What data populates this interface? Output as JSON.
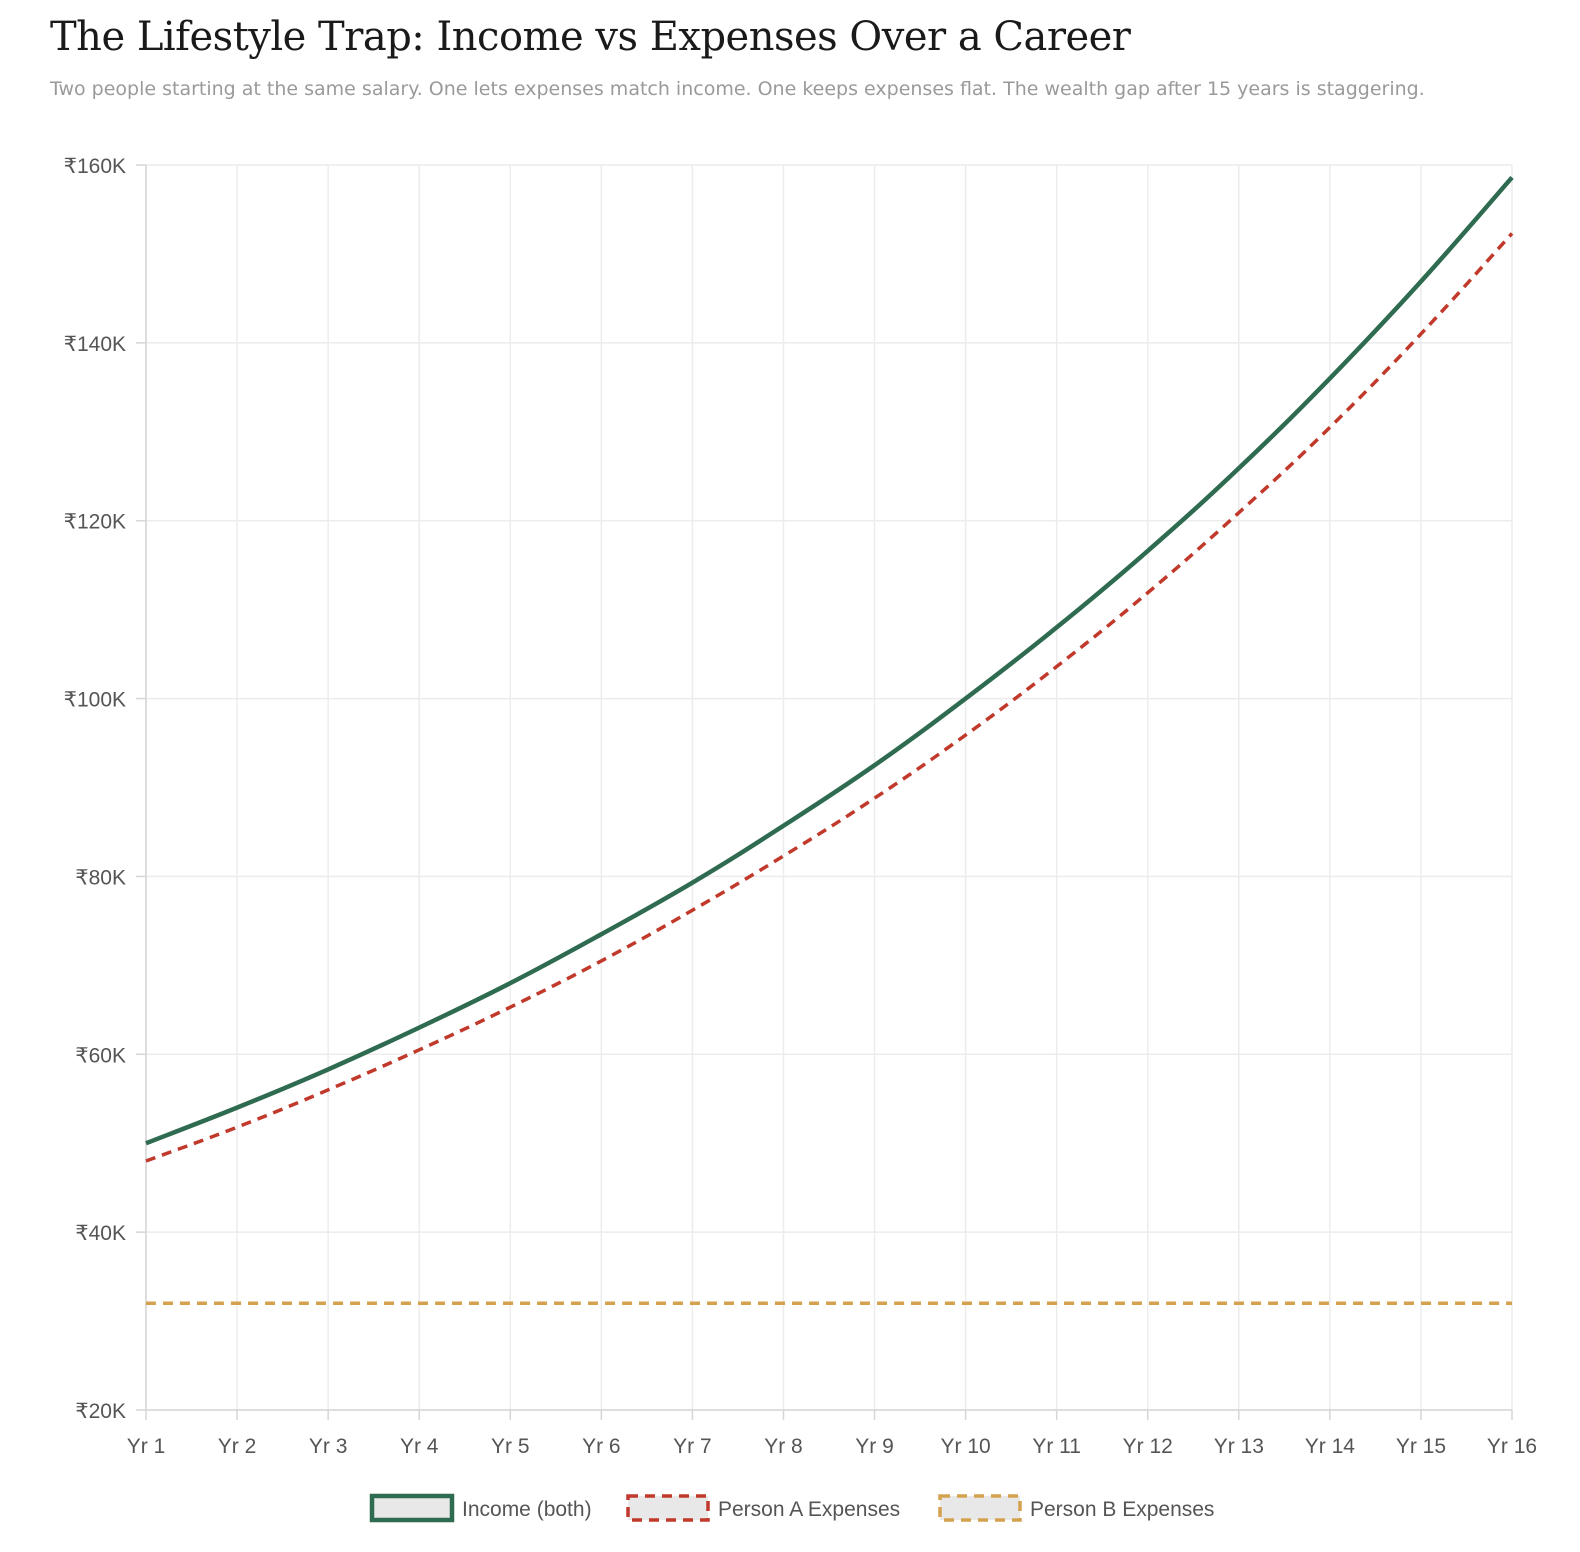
{
  "header": {
    "title": "The Lifestyle Trap: Income vs Expenses Over a Career",
    "subtitle": "Two people starting at the same salary. One lets expenses match income. One keeps expenses flat. The wealth gap after 15 years is staggering."
  },
  "chart_data": {
    "type": "line",
    "title": "The Lifestyle Trap: Income vs Expenses Over a Career",
    "subtitle": "Two people starting at the same salary. One lets expenses match income. One keeps expenses flat. The wealth gap after 15 years is staggering.",
    "xlabel": "",
    "ylabel": "",
    "ylim": [
      20000,
      160000
    ],
    "y_ticks": [
      20000,
      40000,
      60000,
      80000,
      100000,
      120000,
      140000,
      160000
    ],
    "y_tick_labels": [
      "₹20K",
      "₹40K",
      "₹60K",
      "₹80K",
      "₹100K",
      "₹120K",
      "₹140K",
      "₹160K"
    ],
    "categories": [
      "Yr 1",
      "Yr 2",
      "Yr 3",
      "Yr 4",
      "Yr 5",
      "Yr 6",
      "Yr 7",
      "Yr 8",
      "Yr 9",
      "Yr 10",
      "Yr 11",
      "Yr 12",
      "Yr 13",
      "Yr 14",
      "Yr 15",
      "Yr 16"
    ],
    "grid": true,
    "legend_position": "bottom",
    "series": [
      {
        "name": "Income (both)",
        "color": "#2e6b50",
        "dash": "solid",
        "values": [
          50000,
          54000,
          58300,
          63000,
          68000,
          73500,
          79300,
          85700,
          92500,
          100000,
          108000,
          116600,
          125900,
          136000,
          146900,
          158600
        ]
      },
      {
        "name": "Person A Expenses",
        "color": "#c0392b",
        "dash": "dashed",
        "values": [
          48000,
          51800,
          56000,
          60500,
          65300,
          70500,
          76200,
          82300,
          88800,
          95900,
          103600,
          111900,
          120900,
          130500,
          141000,
          152300
        ]
      },
      {
        "name": "Person B Expenses",
        "color": "#d4a24e",
        "dash": "dashed",
        "values": [
          32000,
          32000,
          32000,
          32000,
          32000,
          32000,
          32000,
          32000,
          32000,
          32000,
          32000,
          32000,
          32000,
          32000,
          32000,
          32000
        ]
      }
    ]
  }
}
